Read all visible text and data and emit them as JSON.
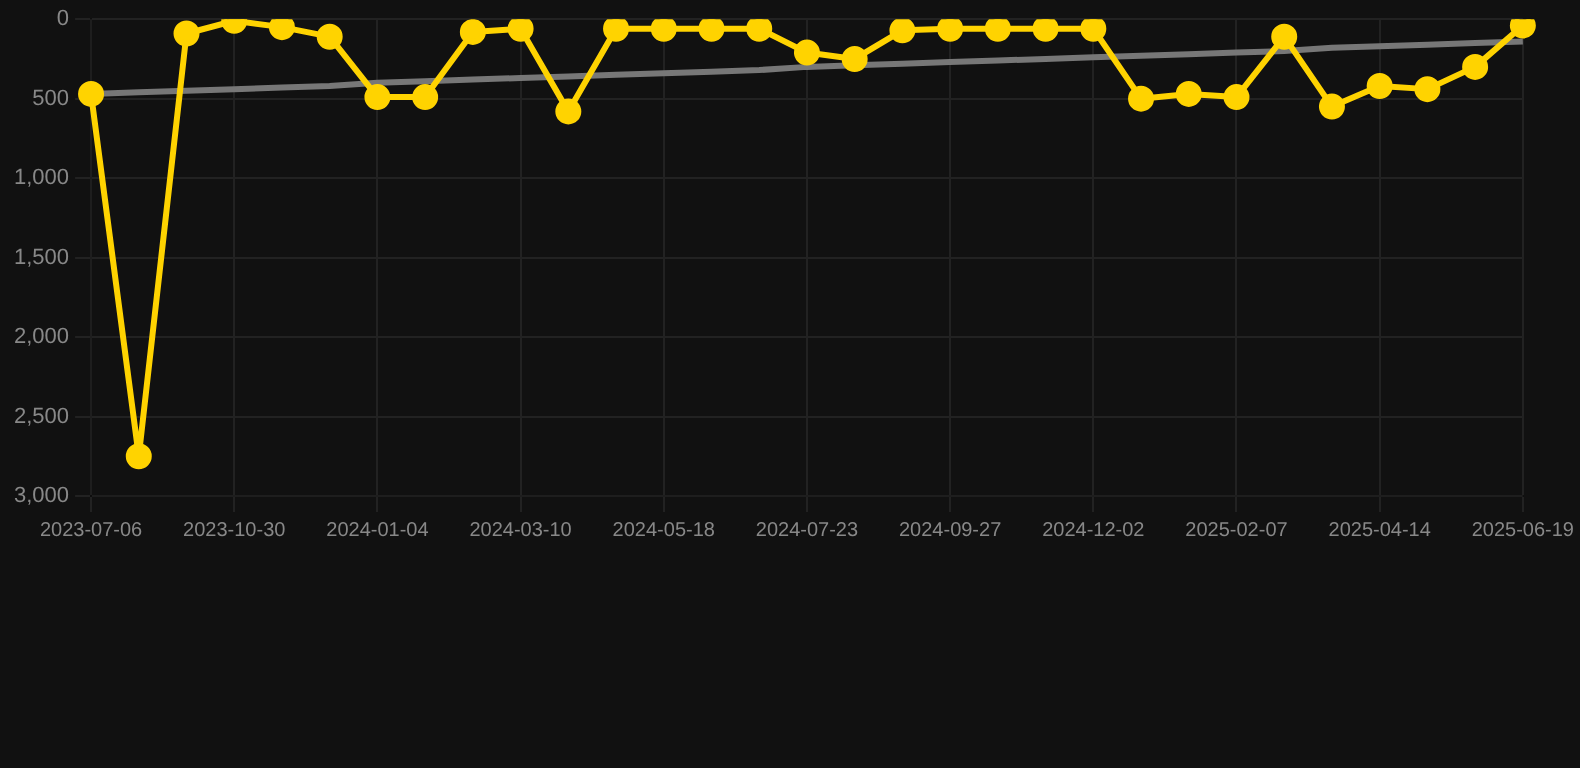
{
  "chart_data": {
    "type": "line",
    "categories": [
      "2023-07-06",
      null,
      null,
      "2023-10-30",
      null,
      null,
      "2024-01-04",
      null,
      null,
      "2024-03-10",
      null,
      null,
      "2024-05-18",
      null,
      null,
      "2024-07-23",
      null,
      null,
      "2024-09-27",
      null,
      null,
      "2024-12-02",
      null,
      null,
      "2025-02-07",
      null,
      null,
      "2025-04-14",
      null,
      null,
      "2025-06-19"
    ],
    "series": [
      {
        "color": "#ffd300",
        "values": [
          470,
          2750,
          90,
          10,
          50,
          110,
          490,
          490,
          80,
          60,
          580,
          60,
          60,
          60,
          60,
          210,
          250,
          70,
          60,
          60,
          60,
          60,
          500,
          470,
          490,
          110,
          550,
          420,
          440,
          300,
          40
        ]
      },
      {
        "type": "line",
        "color": "#777777",
        "marker": "none",
        "values": [
          470,
          460,
          450,
          440,
          430,
          420,
          400,
          390,
          380,
          370,
          360,
          350,
          340,
          330,
          320,
          300,
          290,
          280,
          270,
          260,
          250,
          240,
          230,
          220,
          210,
          200,
          180,
          170,
          160,
          150,
          140
        ]
      }
    ],
    "ylim": [
      3000,
      0
    ],
    "yticks": [
      0,
      500,
      {
        "value": 1000,
        "label": "1,000"
      },
      {
        "value": 1500,
        "label": "1,500"
      },
      {
        "value": 2000,
        "label": "2,000"
      },
      {
        "value": 2500,
        "label": "2,500"
      },
      {
        "value": 3000,
        "label": "3,000"
      }
    ],
    "grid": true,
    "marker": "circle",
    "line_style": "solid"
  }
}
